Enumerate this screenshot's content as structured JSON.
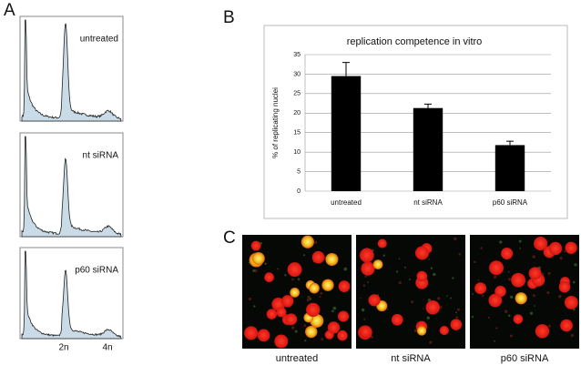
{
  "panels": {
    "a": {
      "label": "A",
      "histograms": [
        {
          "label": "untreated"
        },
        {
          "label": "nt siRNA"
        },
        {
          "label": "p60  siRNA"
        }
      ],
      "x_labels": [
        "2n",
        "4n"
      ]
    },
    "b": {
      "label": "B"
    },
    "c": {
      "label": "C",
      "images": [
        {
          "label": "untreated"
        },
        {
          "label": "nt siRNA"
        },
        {
          "label": "p60  siRNA"
        }
      ]
    }
  },
  "chart_data": {
    "type": "bar",
    "title": "replication competence in vitro",
    "y_label": "% of replicating nuclei",
    "categories": [
      "untreated",
      "nt siRNA",
      "p60  siRNA"
    ],
    "values": [
      29.5,
      21.3,
      11.8
    ],
    "errors": [
      3.5,
      1.0,
      1.0
    ],
    "color": "#000000",
    "ylim": [
      0,
      35
    ],
    "yticks": [
      0,
      5,
      10,
      15,
      20,
      25,
      30,
      35
    ],
    "grid": true
  }
}
